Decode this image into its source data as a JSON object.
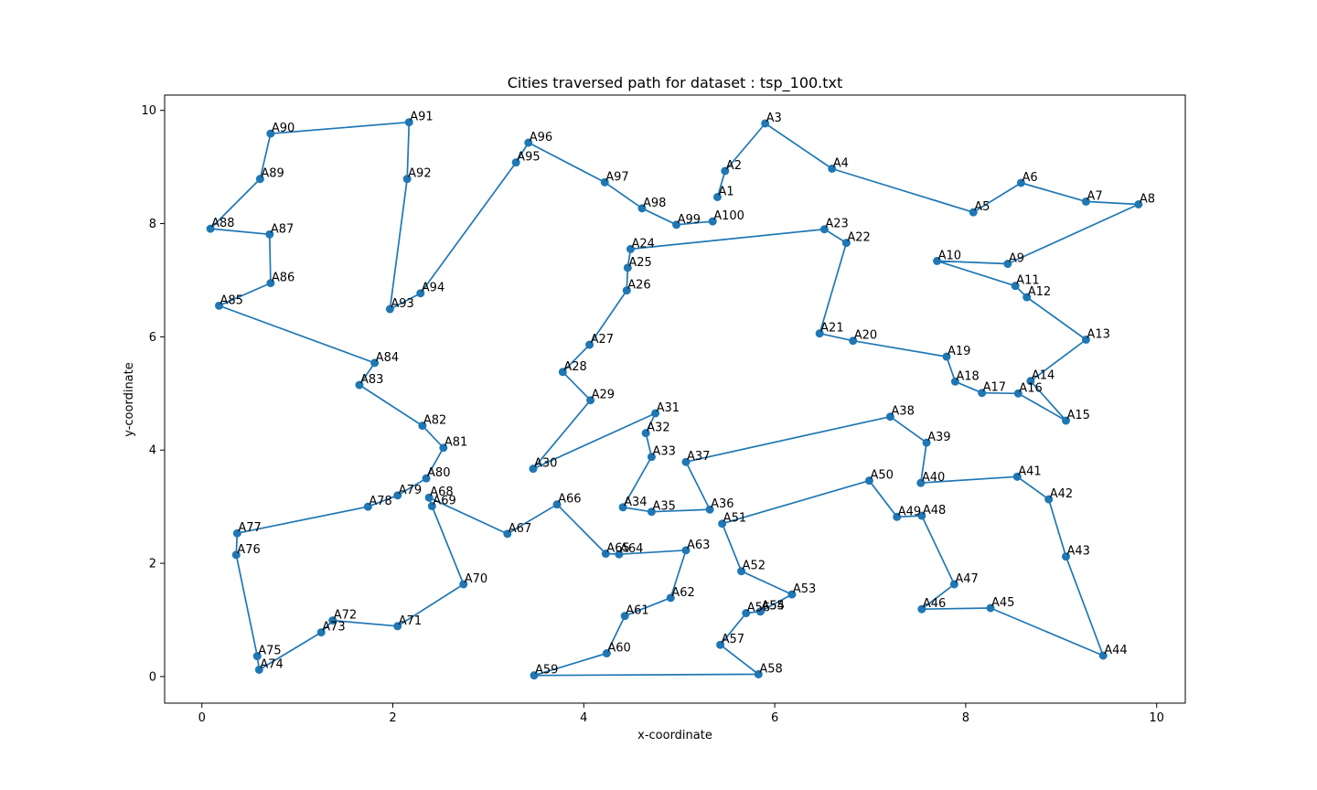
{
  "chart_data": {
    "type": "line",
    "title": "Cities traversed path for dataset : tsp_100.txt",
    "xlabel": "x-coordinate",
    "ylabel": "y-coordinate",
    "xlim": [
      -0.39,
      10.3
    ],
    "ylim": [
      -0.47,
      10.27
    ],
    "xticks": [
      0,
      2,
      4,
      6,
      8,
      10
    ],
    "yticks": [
      0,
      2,
      4,
      6,
      8,
      10
    ],
    "grid": false,
    "legend": "none",
    "line_color": "#1f77b4",
    "marker_color": "#1f77b4",
    "points": [
      {
        "label": "A1",
        "x": 5.4,
        "y": 8.47
      },
      {
        "label": "A2",
        "x": 5.48,
        "y": 8.93
      },
      {
        "label": "A3",
        "x": 5.9,
        "y": 9.77
      },
      {
        "label": "A4",
        "x": 6.6,
        "y": 8.97
      },
      {
        "label": "A5",
        "x": 8.08,
        "y": 8.2
      },
      {
        "label": "A6",
        "x": 8.58,
        "y": 8.72
      },
      {
        "label": "A7",
        "x": 9.26,
        "y": 8.39
      },
      {
        "label": "A8",
        "x": 9.81,
        "y": 8.34
      },
      {
        "label": "A9",
        "x": 8.44,
        "y": 7.29
      },
      {
        "label": "A10",
        "x": 7.7,
        "y": 7.34
      },
      {
        "label": "A11",
        "x": 8.52,
        "y": 6.9
      },
      {
        "label": "A12",
        "x": 8.64,
        "y": 6.7
      },
      {
        "label": "A13",
        "x": 9.26,
        "y": 5.95
      },
      {
        "label": "A14",
        "x": 8.68,
        "y": 5.22
      },
      {
        "label": "A15",
        "x": 9.05,
        "y": 4.52
      },
      {
        "label": "A16",
        "x": 8.55,
        "y": 5.0
      },
      {
        "label": "A17",
        "x": 8.17,
        "y": 5.01
      },
      {
        "label": "A18",
        "x": 7.89,
        "y": 5.21
      },
      {
        "label": "A19",
        "x": 7.8,
        "y": 5.65
      },
      {
        "label": "A20",
        "x": 6.82,
        "y": 5.93
      },
      {
        "label": "A21",
        "x": 6.47,
        "y": 6.06
      },
      {
        "label": "A22",
        "x": 6.75,
        "y": 7.66
      },
      {
        "label": "A23",
        "x": 6.52,
        "y": 7.9
      },
      {
        "label": "A24",
        "x": 4.49,
        "y": 7.55
      },
      {
        "label": "A25",
        "x": 4.46,
        "y": 7.22
      },
      {
        "label": "A26",
        "x": 4.45,
        "y": 6.82
      },
      {
        "label": "A27",
        "x": 4.06,
        "y": 5.86
      },
      {
        "label": "A28",
        "x": 3.78,
        "y": 5.38
      },
      {
        "label": "A29",
        "x": 4.07,
        "y": 4.88
      },
      {
        "label": "A30",
        "x": 3.47,
        "y": 3.67
      },
      {
        "label": "A31",
        "x": 4.75,
        "y": 4.65
      },
      {
        "label": "A32",
        "x": 4.65,
        "y": 4.3
      },
      {
        "label": "A33",
        "x": 4.71,
        "y": 3.88
      },
      {
        "label": "A34",
        "x": 4.41,
        "y": 2.99
      },
      {
        "label": "A35",
        "x": 4.71,
        "y": 2.91
      },
      {
        "label": "A36",
        "x": 5.32,
        "y": 2.95
      },
      {
        "label": "A37",
        "x": 5.07,
        "y": 3.79
      },
      {
        "label": "A38",
        "x": 7.21,
        "y": 4.59
      },
      {
        "label": "A39",
        "x": 7.59,
        "y": 4.13
      },
      {
        "label": "A40",
        "x": 7.53,
        "y": 3.42
      },
      {
        "label": "A41",
        "x": 8.54,
        "y": 3.53
      },
      {
        "label": "A42",
        "x": 8.87,
        "y": 3.13
      },
      {
        "label": "A43",
        "x": 9.05,
        "y": 2.12
      },
      {
        "label": "A44",
        "x": 9.44,
        "y": 0.37
      },
      {
        "label": "A45",
        "x": 8.26,
        "y": 1.21
      },
      {
        "label": "A46",
        "x": 7.54,
        "y": 1.19
      },
      {
        "label": "A47",
        "x": 7.88,
        "y": 1.63
      },
      {
        "label": "A48",
        "x": 7.54,
        "y": 2.84
      },
      {
        "label": "A49",
        "x": 7.28,
        "y": 2.82
      },
      {
        "label": "A50",
        "x": 6.99,
        "y": 3.46
      },
      {
        "label": "A51",
        "x": 5.45,
        "y": 2.7
      },
      {
        "label": "A52",
        "x": 5.65,
        "y": 1.86
      },
      {
        "label": "A53",
        "x": 6.18,
        "y": 1.45
      },
      {
        "label": "A54",
        "x": 5.85,
        "y": 1.15
      },
      {
        "label": "A55",
        "x": 5.85,
        "y": 1.15
      },
      {
        "label": "A56",
        "x": 5.7,
        "y": 1.12
      },
      {
        "label": "A57",
        "x": 5.43,
        "y": 0.56
      },
      {
        "label": "A58",
        "x": 5.83,
        "y": 0.04
      },
      {
        "label": "A59",
        "x": 3.48,
        "y": 0.02
      },
      {
        "label": "A60",
        "x": 4.24,
        "y": 0.41
      },
      {
        "label": "A61",
        "x": 4.43,
        "y": 1.07
      },
      {
        "label": "A62",
        "x": 4.91,
        "y": 1.39
      },
      {
        "label": "A63",
        "x": 5.07,
        "y": 2.23
      },
      {
        "label": "A64",
        "x": 4.37,
        "y": 2.16
      },
      {
        "label": "A65",
        "x": 4.23,
        "y": 2.17
      },
      {
        "label": "A66",
        "x": 3.72,
        "y": 3.04
      },
      {
        "label": "A67",
        "x": 3.2,
        "y": 2.52
      },
      {
        "label": "A68",
        "x": 2.38,
        "y": 3.16
      },
      {
        "label": "A69",
        "x": 2.41,
        "y": 3.01
      },
      {
        "label": "A70",
        "x": 2.74,
        "y": 1.63
      },
      {
        "label": "A71",
        "x": 2.05,
        "y": 0.89
      },
      {
        "label": "A72",
        "x": 1.37,
        "y": 0.99
      },
      {
        "label": "A73",
        "x": 1.25,
        "y": 0.78
      },
      {
        "label": "A74",
        "x": 0.6,
        "y": 0.12
      },
      {
        "label": "A75",
        "x": 0.58,
        "y": 0.36
      },
      {
        "label": "A76",
        "x": 0.36,
        "y": 2.15
      },
      {
        "label": "A77",
        "x": 0.37,
        "y": 2.53
      },
      {
        "label": "A78",
        "x": 1.74,
        "y": 3.0
      },
      {
        "label": "A79",
        "x": 2.05,
        "y": 3.2
      },
      {
        "label": "A80",
        "x": 2.35,
        "y": 3.5
      },
      {
        "label": "A81",
        "x": 2.53,
        "y": 4.04
      },
      {
        "label": "A82",
        "x": 2.31,
        "y": 4.43
      },
      {
        "label": "A83",
        "x": 1.65,
        "y": 5.15
      },
      {
        "label": "A84",
        "x": 1.81,
        "y": 5.54
      },
      {
        "label": "A85",
        "x": 0.18,
        "y": 6.55
      },
      {
        "label": "A86",
        "x": 0.72,
        "y": 6.95
      },
      {
        "label": "A87",
        "x": 0.71,
        "y": 7.81
      },
      {
        "label": "A88",
        "x": 0.09,
        "y": 7.91
      },
      {
        "label": "A89",
        "x": 0.61,
        "y": 8.79
      },
      {
        "label": "A90",
        "x": 0.72,
        "y": 9.59
      },
      {
        "label": "A91",
        "x": 2.17,
        "y": 9.79
      },
      {
        "label": "A92",
        "x": 2.15,
        "y": 8.79
      },
      {
        "label": "A93",
        "x": 1.97,
        "y": 6.49
      },
      {
        "label": "A94",
        "x": 2.29,
        "y": 6.77
      },
      {
        "label": "A95",
        "x": 3.29,
        "y": 9.08
      },
      {
        "label": "A96",
        "x": 3.42,
        "y": 9.43
      },
      {
        "label": "A97",
        "x": 4.22,
        "y": 8.73
      },
      {
        "label": "A98",
        "x": 4.61,
        "y": 8.27
      },
      {
        "label": "A99",
        "x": 4.97,
        "y": 7.98
      },
      {
        "label": "A100",
        "x": 5.35,
        "y": 8.04
      }
    ]
  }
}
